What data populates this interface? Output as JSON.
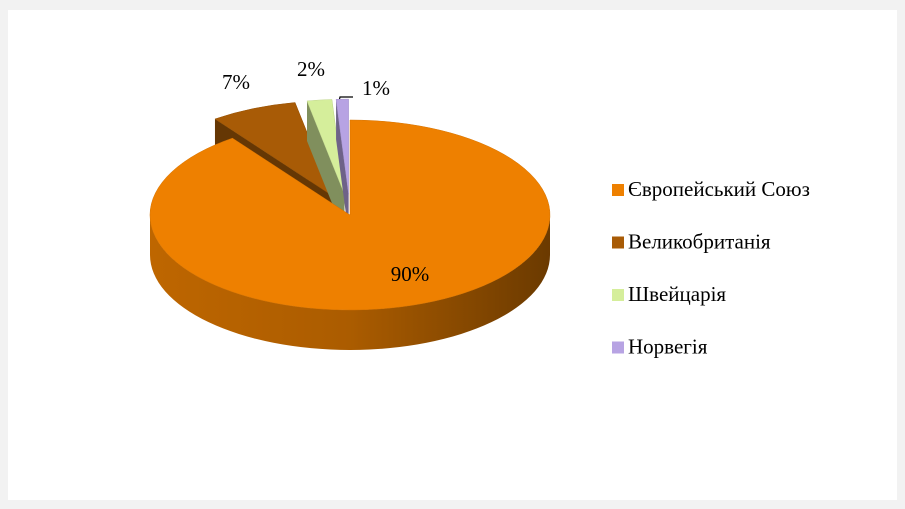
{
  "chart_data": {
    "type": "pie",
    "categories": [
      "Європейський Союз",
      "Великобританія",
      "Швейцарія",
      "Норвегія"
    ],
    "values": [
      90,
      7,
      2,
      1
    ],
    "value_labels": [
      "90%",
      "7%",
      "2%",
      "1%"
    ],
    "colors": [
      "#ee8000",
      "#a85b06",
      "#d5ee9b",
      "#b7a3e3"
    ],
    "legend": "right"
  }
}
